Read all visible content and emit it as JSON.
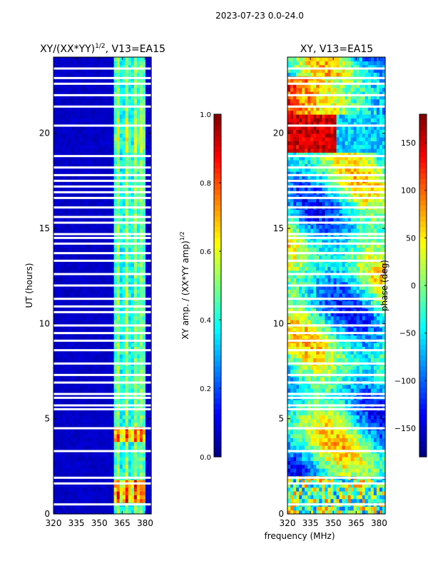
{
  "figure": {
    "suptitle": "2023-07-23 0.0-24.0",
    "xlabel_shared": "frequency (MHz)"
  },
  "chart_data": [
    {
      "type": "heatmap",
      "title_base": "XY/(XX*YY)",
      "title_exp": "1/2",
      "title_suffix": ", V13=EA15",
      "ylabel": "UT (hours)",
      "xlim": [
        320,
        384
      ],
      "ylim": [
        0,
        24
      ],
      "xticks": [
        320,
        335,
        350,
        365,
        380
      ],
      "yticks": [
        0,
        5,
        10,
        15,
        20
      ],
      "colorbar": {
        "label_base": "XY amp. / (XX*YY amp)",
        "label_exp": "1/2",
        "range": [
          0.0,
          1.0
        ],
        "ticks": [
          "0.0",
          "0.2",
          "0.4",
          "0.6",
          "0.8",
          "1.0"
        ],
        "tick_values": [
          0,
          0.2,
          0.4,
          0.6,
          0.8,
          1.0
        ],
        "colormap": "jet"
      },
      "bright_channels_mhz": [
        362,
        368,
        374,
        378
      ],
      "typical_background_value": 0.05
    },
    {
      "type": "heatmap",
      "title": "XY, V13=EA15",
      "xlim": [
        320,
        384
      ],
      "ylim": [
        0,
        24
      ],
      "xticks": [
        320,
        335,
        350,
        365,
        380
      ],
      "yticks": [
        0,
        5,
        10,
        15,
        20
      ],
      "colorbar": {
        "label": "phase (deg)",
        "range": [
          -180,
          180
        ],
        "ticks": [
          "150",
          "100",
          "50",
          "0",
          "−50",
          "−100",
          "−150"
        ],
        "tick_values": [
          150,
          100,
          50,
          0,
          -50,
          -100,
          -150
        ],
        "colormap": "jet"
      }
    }
  ],
  "flagged_hours": [
    0.5,
    1.6,
    1.9,
    3.3,
    4.5,
    5.5,
    5.7,
    6.1,
    6.3,
    6.9,
    7.3,
    7.9,
    8.6,
    9.1,
    9.5,
    9.9,
    10.6,
    10.9,
    11.3,
    12.0,
    12.6,
    13.3,
    13.7,
    14.2,
    14.5,
    14.7,
    15.3,
    15.6,
    16.1,
    16.6,
    16.9,
    17.2,
    17.5,
    17.8,
    18.2,
    18.8,
    20.4,
    21.4,
    22.0,
    22.6,
    22.9,
    23.4
  ]
}
